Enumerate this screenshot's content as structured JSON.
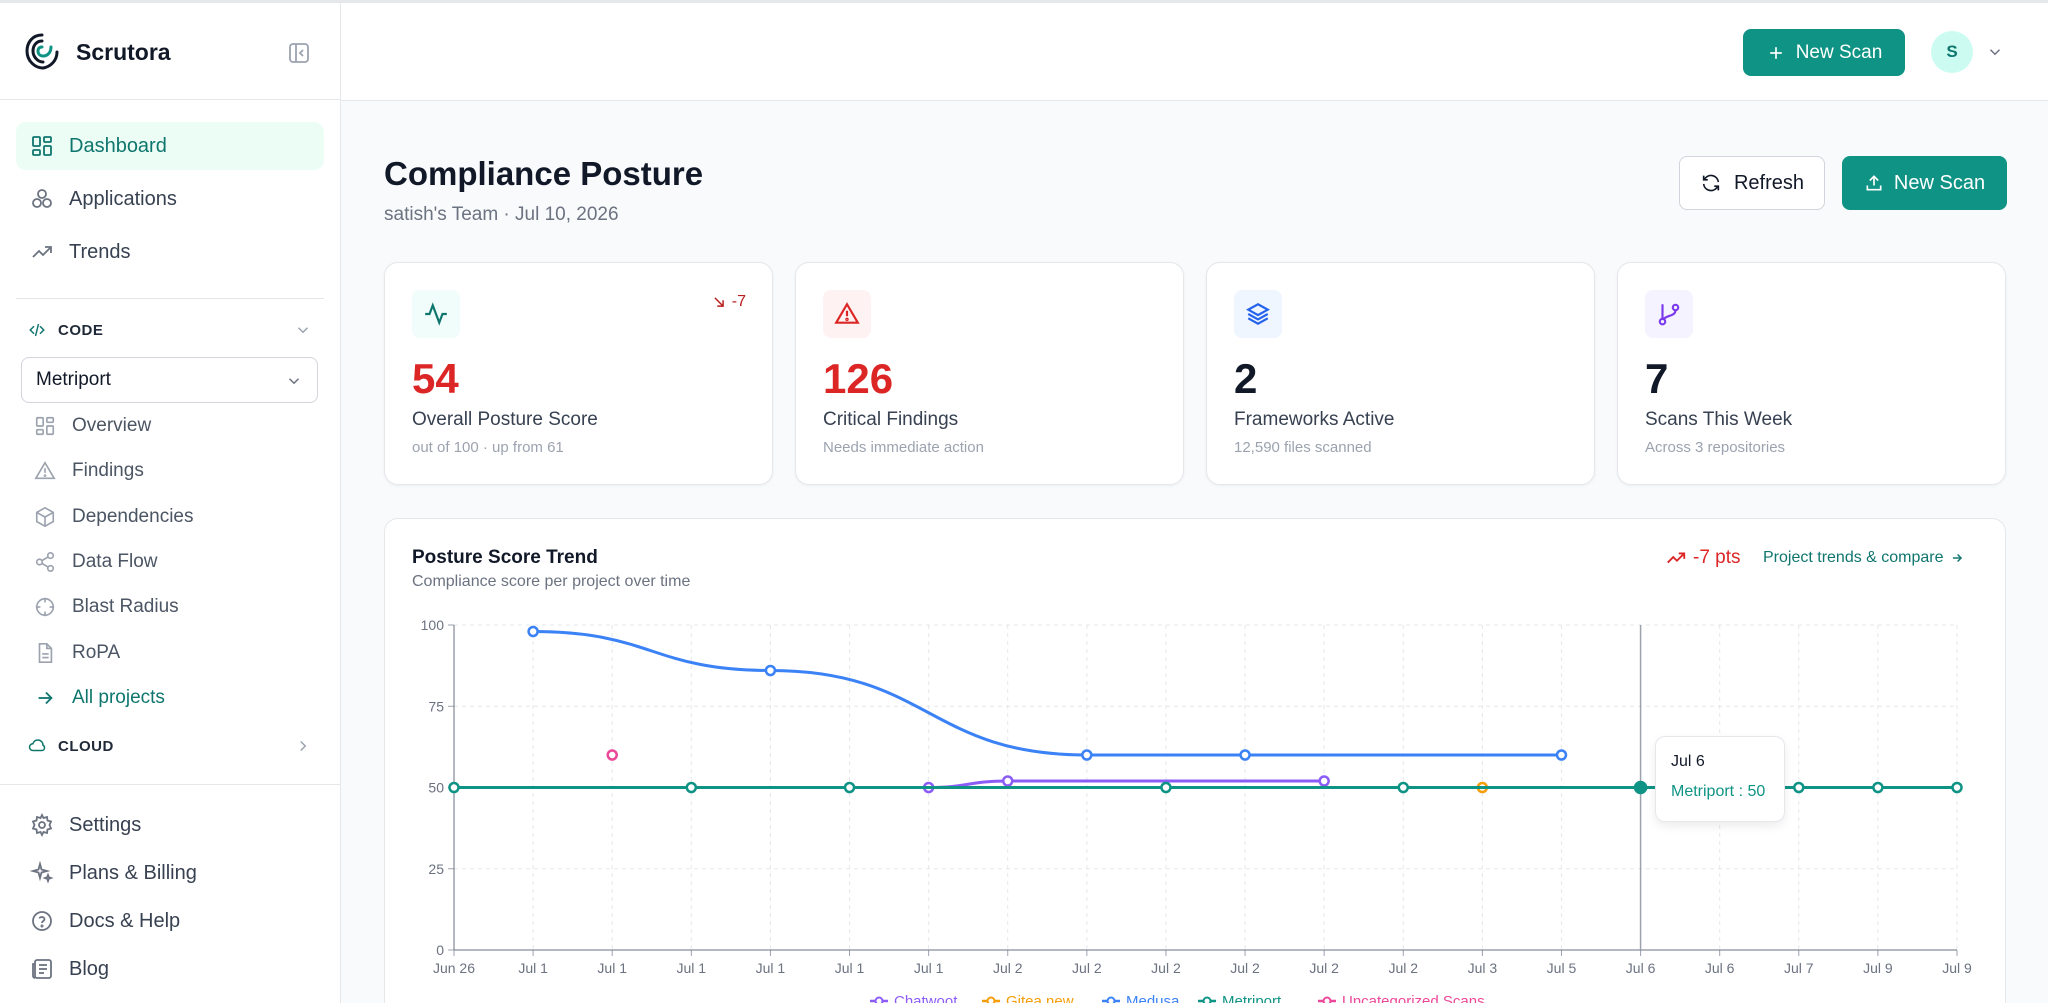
{
  "app": {
    "name": "Scrutora"
  },
  "sidebar": {
    "nav": [
      {
        "label": "Dashboard",
        "icon": "dashboard-icon",
        "active": true
      },
      {
        "label": "Applications",
        "icon": "applications-icon"
      },
      {
        "label": "Trends",
        "icon": "trend-icon"
      }
    ],
    "code_section": {
      "label": "CODE"
    },
    "project_select": {
      "value": "Metriport"
    },
    "code_items": [
      {
        "label": "Overview",
        "icon": "overview-icon"
      },
      {
        "label": "Findings",
        "icon": "warning-icon"
      },
      {
        "label": "Dependencies",
        "icon": "package-icon"
      },
      {
        "label": "Data Flow",
        "icon": "share-icon"
      },
      {
        "label": "Blast Radius",
        "icon": "target-icon"
      },
      {
        "label": "RoPA",
        "icon": "document-icon"
      },
      {
        "label": "All projects",
        "icon": "arrow-right-icon"
      }
    ],
    "cloud_section": {
      "label": "CLOUD"
    },
    "bottom_items": [
      {
        "label": "Settings",
        "icon": "gear-icon"
      },
      {
        "label": "Plans & Billing",
        "icon": "sparkles-icon"
      },
      {
        "label": "Docs & Help",
        "icon": "help-icon"
      },
      {
        "label": "Blog",
        "icon": "newspaper-icon"
      }
    ]
  },
  "header": {
    "new_scan_label": "New Scan",
    "avatar_initial": "S"
  },
  "page": {
    "title": "Compliance Posture",
    "subtitle": "satish's Team · Jul 10, 2026",
    "refresh_label": "Refresh",
    "new_scan_label": "New Scan"
  },
  "stats": [
    {
      "value": "54",
      "label": "Overall Posture Score",
      "note": "out of 100 · up from 61",
      "delta": "-7",
      "value_color": "#dc2626",
      "icon": "activity-icon"
    },
    {
      "value": "126",
      "label": "Critical Findings",
      "note": "Needs immediate action",
      "value_color": "#dc2626",
      "icon": "alert-triangle-icon"
    },
    {
      "value": "2",
      "label": "Frameworks Active",
      "note": "12,590 files scanned",
      "value_color": "#111827",
      "icon": "layers-icon"
    },
    {
      "value": "7",
      "label": "Scans This Week",
      "note": "Across 3 repositories",
      "value_color": "#111827",
      "icon": "git-branch-icon"
    }
  ],
  "trend": {
    "title": "Posture Score Trend",
    "subtitle": "Compliance score per project over time",
    "delta": "-7 pts",
    "link": "Project trends & compare"
  },
  "tooltip": {
    "date": "Jul 6",
    "text": "Metriport : 50"
  },
  "chart_data": {
    "type": "line",
    "categories": [
      "Jun 26",
      "Jul 1",
      "Jul 1",
      "Jul 1",
      "Jul 1",
      "Jul 1",
      "Jul 1",
      "Jul 2",
      "Jul 2",
      "Jul 2",
      "Jul 2",
      "Jul 2",
      "Jul 2",
      "Jul 3",
      "Jul 5",
      "Jul 6",
      "Jul 6",
      "Jul 7",
      "Jul 9",
      "Jul 9"
    ],
    "ylim": [
      0,
      100
    ],
    "yticks": [
      0,
      25,
      50,
      75,
      100
    ],
    "series": [
      {
        "name": "Chatwoot",
        "color": "#8b5cf6",
        "values": [
          null,
          null,
          null,
          null,
          null,
          null,
          50,
          52,
          null,
          null,
          null,
          52,
          null,
          null,
          null,
          null,
          null,
          null,
          null,
          null
        ]
      },
      {
        "name": "Gitea new",
        "color": "#f59e0b",
        "values": [
          null,
          null,
          null,
          null,
          null,
          null,
          null,
          null,
          null,
          null,
          null,
          null,
          null,
          50,
          null,
          null,
          null,
          null,
          null,
          null
        ]
      },
      {
        "name": "Medusa",
        "color": "#3b82f6",
        "values": [
          null,
          98,
          null,
          null,
          86,
          null,
          null,
          null,
          60,
          null,
          60,
          null,
          null,
          null,
          60,
          null,
          null,
          null,
          null,
          null
        ]
      },
      {
        "name": "Metriport",
        "color": "#0f9384",
        "values": [
          50,
          null,
          null,
          50,
          null,
          50,
          null,
          null,
          null,
          50,
          null,
          null,
          50,
          null,
          null,
          50,
          null,
          50,
          50,
          50
        ]
      },
      {
        "name": "Uncategorized Scans",
        "color": "#ec4899",
        "values": [
          null,
          null,
          60,
          null,
          null,
          null,
          null,
          null,
          null,
          null,
          null,
          null,
          null,
          null,
          null,
          null,
          null,
          null,
          null,
          null
        ]
      }
    ]
  }
}
